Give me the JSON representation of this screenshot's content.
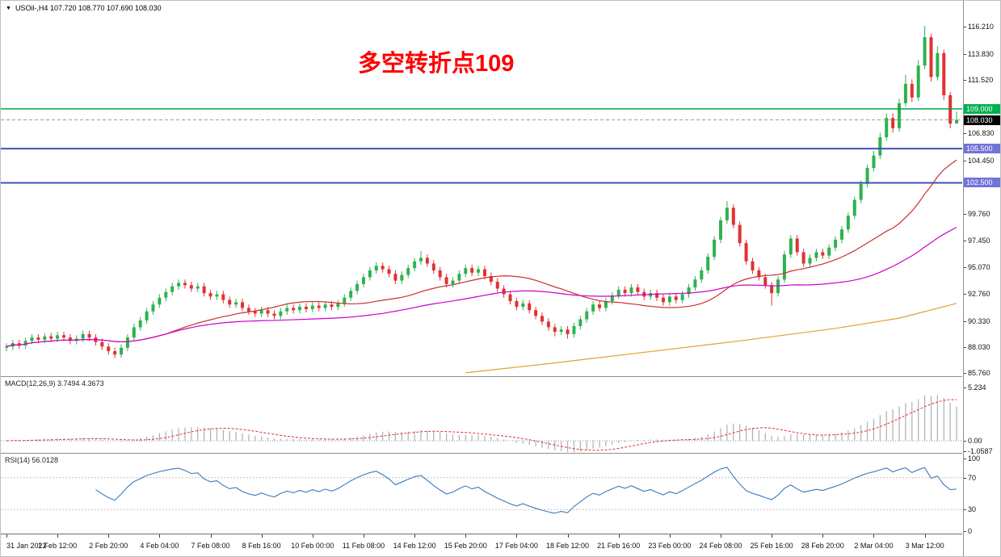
{
  "header": {
    "arrow": "▼",
    "symbol_info": "USOil-,H4  107.720 108.770 107.690 108.030"
  },
  "annotation": {
    "text": "多空转折点109",
    "color": "#ff0000"
  },
  "main_chart": {
    "price_axis_ticks": [
      "116.210",
      "113.830",
      "111.520",
      "106.830",
      "104.450",
      "99.760",
      "97.450",
      "95.070",
      "92.760",
      "90.330",
      "88.030",
      "85.760"
    ],
    "levels": [
      {
        "price": 109.0,
        "label": "109.000",
        "color": "#00a651",
        "label_bg": "#00b050",
        "style": "solid",
        "width": 1.6
      },
      {
        "price": 108.03,
        "label": "108.030",
        "color": "#999999",
        "label_bg": "#000000",
        "style": "dashed",
        "width": 1
      },
      {
        "price": 105.5,
        "label": "105.500",
        "color": "#3f51b5",
        "label_bg": "#7273d9",
        "style": "solid",
        "width": 2
      },
      {
        "price": 102.5,
        "label": "102.500",
        "color": "#3f51b5",
        "label_bg": "#7273d9",
        "style": "solid",
        "width": 2
      }
    ]
  },
  "chart_data": {
    "type": "candlestick",
    "symbol": "USOil-",
    "timeframe": "H4",
    "ohlc_current": {
      "open": "107.720",
      "high": "108.770",
      "low": "107.690",
      "close": "108.030"
    },
    "ylim_main": [
      85.5,
      118.5
    ],
    "label_step": 8,
    "colors": {
      "up": "#2eb24e",
      "down": "#e03232",
      "ma_fast": "#cc2e2e",
      "ma_mid": "#cc00cc",
      "ma_slow": "#e0a22e",
      "macd_hist": "#b0b0b0",
      "macd_signal": "#e03030",
      "rsi": "#3a7abf"
    },
    "time_labels": [
      "31 Jan 2022",
      "1 Feb 12:00",
      "2 Feb 20:00",
      "4 Feb 04:00",
      "7 Feb 08:00",
      "8 Feb 16:00",
      "10 Feb 00:00",
      "11 Feb 08:00",
      "14 Feb 12:00",
      "15 Feb 20:00",
      "17 Feb 04:00",
      "18 Feb 12:00",
      "21 Feb 16:00",
      "23 Feb 00:00",
      "24 Feb 08:00",
      "25 Feb 16:00",
      "28 Feb 20:00",
      "2 Mar 04:00",
      "3 Mar 12:00"
    ],
    "overlays": [
      {
        "name": "ma-fast",
        "type": "sma",
        "period": 26,
        "color": "#cc2e2e",
        "width": 1.2
      },
      {
        "name": "ma-mid",
        "type": "sma",
        "period": 60,
        "color": "#cc00cc",
        "width": 1.2
      },
      {
        "name": "ma-slow",
        "type": "polyline",
        "color": "#e0a22e",
        "width": 1.2,
        "points": [
          [
            72,
            85.8
          ],
          [
            85,
            86.6
          ],
          [
            100,
            87.6
          ],
          [
            115,
            88.6
          ],
          [
            130,
            89.7
          ],
          [
            140,
            90.6
          ],
          [
            149,
            91.9
          ]
        ]
      }
    ],
    "indicators": {
      "macd": {
        "label": "MACD(12,26,9) 3.7494 4.3673",
        "fast": 12,
        "slow": 26,
        "signal": 9,
        "axis_ticks": [
          "5.234",
          "0.00",
          "-1.0587"
        ],
        "range": [
          -1.2,
          6.3
        ]
      },
      "rsi": {
        "label": "RSI(14) 56.0128",
        "period": 14,
        "axis_ticks": [
          "100",
          "70",
          "30",
          "0"
        ],
        "range": [
          0,
          100
        ],
        "guides": [
          70,
          30
        ]
      }
    },
    "candles": [
      [
        88.0,
        88.4,
        87.7,
        88.1
      ],
      [
        88.1,
        88.7,
        87.8,
        88.4
      ],
      [
        88.4,
        88.7,
        87.9,
        88.2
      ],
      [
        88.2,
        88.9,
        87.9,
        88.6
      ],
      [
        88.6,
        89.2,
        88.3,
        88.9
      ],
      [
        88.9,
        89.2,
        88.4,
        88.7
      ],
      [
        88.7,
        89.3,
        88.4,
        89.0
      ],
      [
        89.0,
        89.3,
        88.5,
        88.8
      ],
      [
        88.8,
        89.4,
        88.5,
        89.1
      ],
      [
        89.1,
        89.4,
        88.6,
        88.9
      ],
      [
        88.9,
        89.2,
        88.3,
        88.6
      ],
      [
        88.6,
        89.1,
        88.3,
        88.8
      ],
      [
        88.8,
        89.5,
        88.5,
        89.2
      ],
      [
        89.2,
        89.5,
        88.6,
        88.9
      ],
      [
        88.9,
        89.2,
        88.2,
        88.5
      ],
      [
        88.5,
        88.8,
        87.8,
        88.1
      ],
      [
        88.1,
        88.4,
        87.4,
        87.7
      ],
      [
        87.7,
        88.0,
        87.1,
        87.4
      ],
      [
        87.4,
        88.3,
        87.1,
        88.0
      ],
      [
        88.0,
        89.2,
        87.7,
        88.9
      ],
      [
        88.9,
        90.1,
        88.6,
        89.8
      ],
      [
        89.8,
        90.7,
        89.5,
        90.4
      ],
      [
        90.4,
        91.5,
        90.1,
        91.2
      ],
      [
        91.2,
        92.1,
        90.9,
        91.8
      ],
      [
        91.8,
        92.7,
        91.5,
        92.4
      ],
      [
        92.4,
        93.2,
        92.1,
        92.9
      ],
      [
        92.9,
        93.7,
        92.6,
        93.4
      ],
      [
        93.4,
        94.0,
        93.1,
        93.7
      ],
      [
        93.7,
        94.0,
        93.2,
        93.5
      ],
      [
        93.5,
        93.8,
        92.9,
        93.2
      ],
      [
        93.2,
        93.7,
        92.9,
        93.4
      ],
      [
        93.4,
        93.7,
        92.5,
        92.8
      ],
      [
        92.8,
        93.1,
        92.2,
        92.5
      ],
      [
        92.5,
        93.0,
        92.2,
        92.7
      ],
      [
        92.7,
        93.0,
        91.9,
        92.2
      ],
      [
        92.2,
        92.5,
        91.5,
        91.8
      ],
      [
        91.8,
        92.3,
        91.5,
        92.0
      ],
      [
        92.0,
        92.3,
        91.2,
        91.5
      ],
      [
        91.5,
        91.8,
        90.9,
        91.2
      ],
      [
        91.2,
        91.5,
        90.7,
        91.0
      ],
      [
        91.0,
        91.6,
        90.7,
        91.3
      ],
      [
        91.3,
        91.6,
        90.7,
        91.0
      ],
      [
        91.0,
        91.3,
        90.5,
        90.8
      ],
      [
        90.8,
        91.5,
        90.5,
        91.2
      ],
      [
        91.2,
        91.8,
        90.9,
        91.5
      ],
      [
        91.5,
        91.8,
        91.0,
        91.3
      ],
      [
        91.3,
        91.9,
        91.0,
        91.6
      ],
      [
        91.6,
        91.9,
        91.1,
        91.4
      ],
      [
        91.4,
        92.0,
        91.1,
        91.7
      ],
      [
        91.7,
        92.0,
        91.2,
        91.5
      ],
      [
        91.5,
        92.1,
        91.2,
        91.8
      ],
      [
        91.8,
        92.1,
        91.3,
        91.6
      ],
      [
        91.6,
        92.2,
        91.3,
        91.9
      ],
      [
        91.9,
        92.7,
        91.6,
        92.4
      ],
      [
        92.4,
        93.3,
        92.1,
        93.0
      ],
      [
        93.0,
        93.9,
        92.7,
        93.6
      ],
      [
        93.6,
        94.5,
        93.3,
        94.2
      ],
      [
        94.2,
        95.1,
        93.9,
        94.8
      ],
      [
        94.8,
        95.5,
        94.5,
        95.2
      ],
      [
        95.2,
        95.5,
        94.6,
        94.9
      ],
      [
        94.9,
        95.2,
        94.2,
        94.5
      ],
      [
        94.5,
        94.8,
        93.6,
        93.9
      ],
      [
        93.9,
        94.7,
        93.6,
        94.4
      ],
      [
        94.4,
        95.3,
        94.1,
        95.0
      ],
      [
        95.0,
        95.9,
        94.7,
        95.6
      ],
      [
        95.6,
        96.5,
        95.3,
        95.9
      ],
      [
        95.9,
        96.2,
        95.1,
        95.4
      ],
      [
        95.4,
        95.7,
        94.5,
        94.8
      ],
      [
        94.8,
        95.1,
        93.9,
        94.2
      ],
      [
        94.2,
        94.5,
        93.3,
        93.6
      ],
      [
        93.6,
        94.2,
        93.3,
        93.9
      ],
      [
        93.9,
        94.8,
        93.6,
        94.5
      ],
      [
        94.5,
        95.3,
        94.2,
        95.0
      ],
      [
        95.0,
        95.3,
        94.3,
        94.6
      ],
      [
        94.6,
        95.2,
        94.3,
        94.9
      ],
      [
        94.9,
        95.2,
        94.0,
        94.3
      ],
      [
        94.3,
        94.6,
        93.5,
        93.8
      ],
      [
        93.8,
        94.1,
        92.9,
        93.2
      ],
      [
        93.2,
        93.5,
        92.4,
        92.7
      ],
      [
        92.7,
        93.0,
        91.8,
        92.1
      ],
      [
        92.1,
        92.4,
        91.3,
        91.6
      ],
      [
        91.6,
        92.2,
        91.3,
        91.9
      ],
      [
        91.9,
        92.2,
        91.0,
        91.3
      ],
      [
        91.3,
        91.6,
        90.5,
        90.8
      ],
      [
        90.8,
        91.1,
        90.0,
        90.3
      ],
      [
        90.3,
        90.6,
        89.5,
        89.8
      ],
      [
        89.8,
        90.1,
        89.0,
        89.4
      ],
      [
        89.4,
        89.9,
        89.1,
        89.6
      ],
      [
        89.6,
        89.9,
        88.8,
        89.2
      ],
      [
        89.2,
        90.2,
        88.9,
        89.9
      ],
      [
        89.9,
        90.8,
        89.6,
        90.5
      ],
      [
        90.5,
        91.5,
        90.2,
        91.2
      ],
      [
        91.2,
        92.1,
        90.9,
        91.8
      ],
      [
        91.8,
        92.1,
        91.2,
        91.5
      ],
      [
        91.5,
        92.4,
        91.2,
        92.1
      ],
      [
        92.1,
        92.9,
        91.8,
        92.6
      ],
      [
        92.6,
        93.4,
        92.3,
        93.1
      ],
      [
        93.1,
        93.4,
        92.5,
        92.8
      ],
      [
        92.8,
        93.6,
        92.5,
        93.3
      ],
      [
        93.3,
        93.6,
        92.6,
        92.9
      ],
      [
        92.9,
        93.2,
        92.2,
        92.5
      ],
      [
        92.5,
        93.1,
        92.2,
        92.8
      ],
      [
        92.8,
        93.1,
        92.1,
        92.4
      ],
      [
        92.4,
        92.7,
        91.7,
        92.0
      ],
      [
        92.0,
        92.8,
        91.7,
        92.5
      ],
      [
        92.5,
        92.8,
        91.9,
        92.2
      ],
      [
        92.2,
        93.0,
        91.9,
        92.7
      ],
      [
        92.7,
        93.6,
        92.4,
        93.3
      ],
      [
        93.3,
        94.3,
        93.0,
        94.0
      ],
      [
        94.0,
        95.1,
        93.7,
        94.8
      ],
      [
        94.8,
        96.3,
        94.5,
        96.0
      ],
      [
        96.0,
        97.8,
        95.7,
        97.5
      ],
      [
        97.5,
        99.5,
        97.2,
        99.2
      ],
      [
        99.2,
        100.9,
        98.9,
        100.3
      ],
      [
        100.3,
        100.6,
        98.5,
        98.8
      ],
      [
        98.8,
        99.1,
        96.9,
        97.2
      ],
      [
        97.2,
        97.5,
        95.3,
        95.6
      ],
      [
        95.6,
        95.9,
        94.5,
        94.8
      ],
      [
        94.8,
        95.1,
        93.9,
        94.2
      ],
      [
        94.2,
        94.5,
        93.2,
        93.5
      ],
      [
        93.5,
        93.8,
        91.7,
        92.8
      ],
      [
        92.8,
        94.3,
        92.5,
        94.0
      ],
      [
        94.0,
        96.5,
        93.7,
        96.2
      ],
      [
        96.2,
        97.9,
        95.9,
        97.6
      ],
      [
        97.6,
        97.9,
        96.1,
        96.4
      ],
      [
        96.4,
        96.7,
        95.1,
        95.4
      ],
      [
        95.4,
        96.2,
        95.1,
        95.9
      ],
      [
        95.9,
        96.7,
        95.6,
        96.4
      ],
      [
        96.4,
        96.7,
        95.8,
        96.1
      ],
      [
        96.1,
        97.1,
        95.8,
        96.8
      ],
      [
        96.8,
        97.8,
        96.5,
        97.5
      ],
      [
        97.5,
        98.7,
        97.2,
        98.4
      ],
      [
        98.4,
        99.9,
        98.1,
        99.6
      ],
      [
        99.6,
        101.3,
        99.3,
        101.0
      ],
      [
        101.0,
        102.7,
        100.7,
        102.4
      ],
      [
        102.4,
        104.1,
        102.1,
        103.8
      ],
      [
        103.8,
        105.3,
        103.5,
        104.9
      ],
      [
        104.9,
        106.9,
        104.6,
        106.5
      ],
      [
        106.5,
        108.6,
        106.2,
        108.2
      ],
      [
        108.2,
        108.6,
        106.9,
        107.3
      ],
      [
        107.3,
        109.9,
        107.0,
        109.5
      ],
      [
        109.5,
        112.0,
        109.2,
        111.2
      ],
      [
        111.2,
        111.6,
        109.6,
        110.0
      ],
      [
        110.0,
        113.3,
        109.7,
        112.8
      ],
      [
        112.8,
        116.3,
        112.5,
        115.3
      ],
      [
        115.3,
        115.6,
        111.4,
        111.8
      ],
      [
        111.8,
        114.5,
        111.5,
        113.9
      ],
      [
        113.9,
        114.2,
        109.8,
        110.2
      ],
      [
        110.2,
        110.5,
        107.3,
        107.7
      ],
      [
        107.72,
        108.77,
        107.69,
        108.03
      ]
    ]
  }
}
